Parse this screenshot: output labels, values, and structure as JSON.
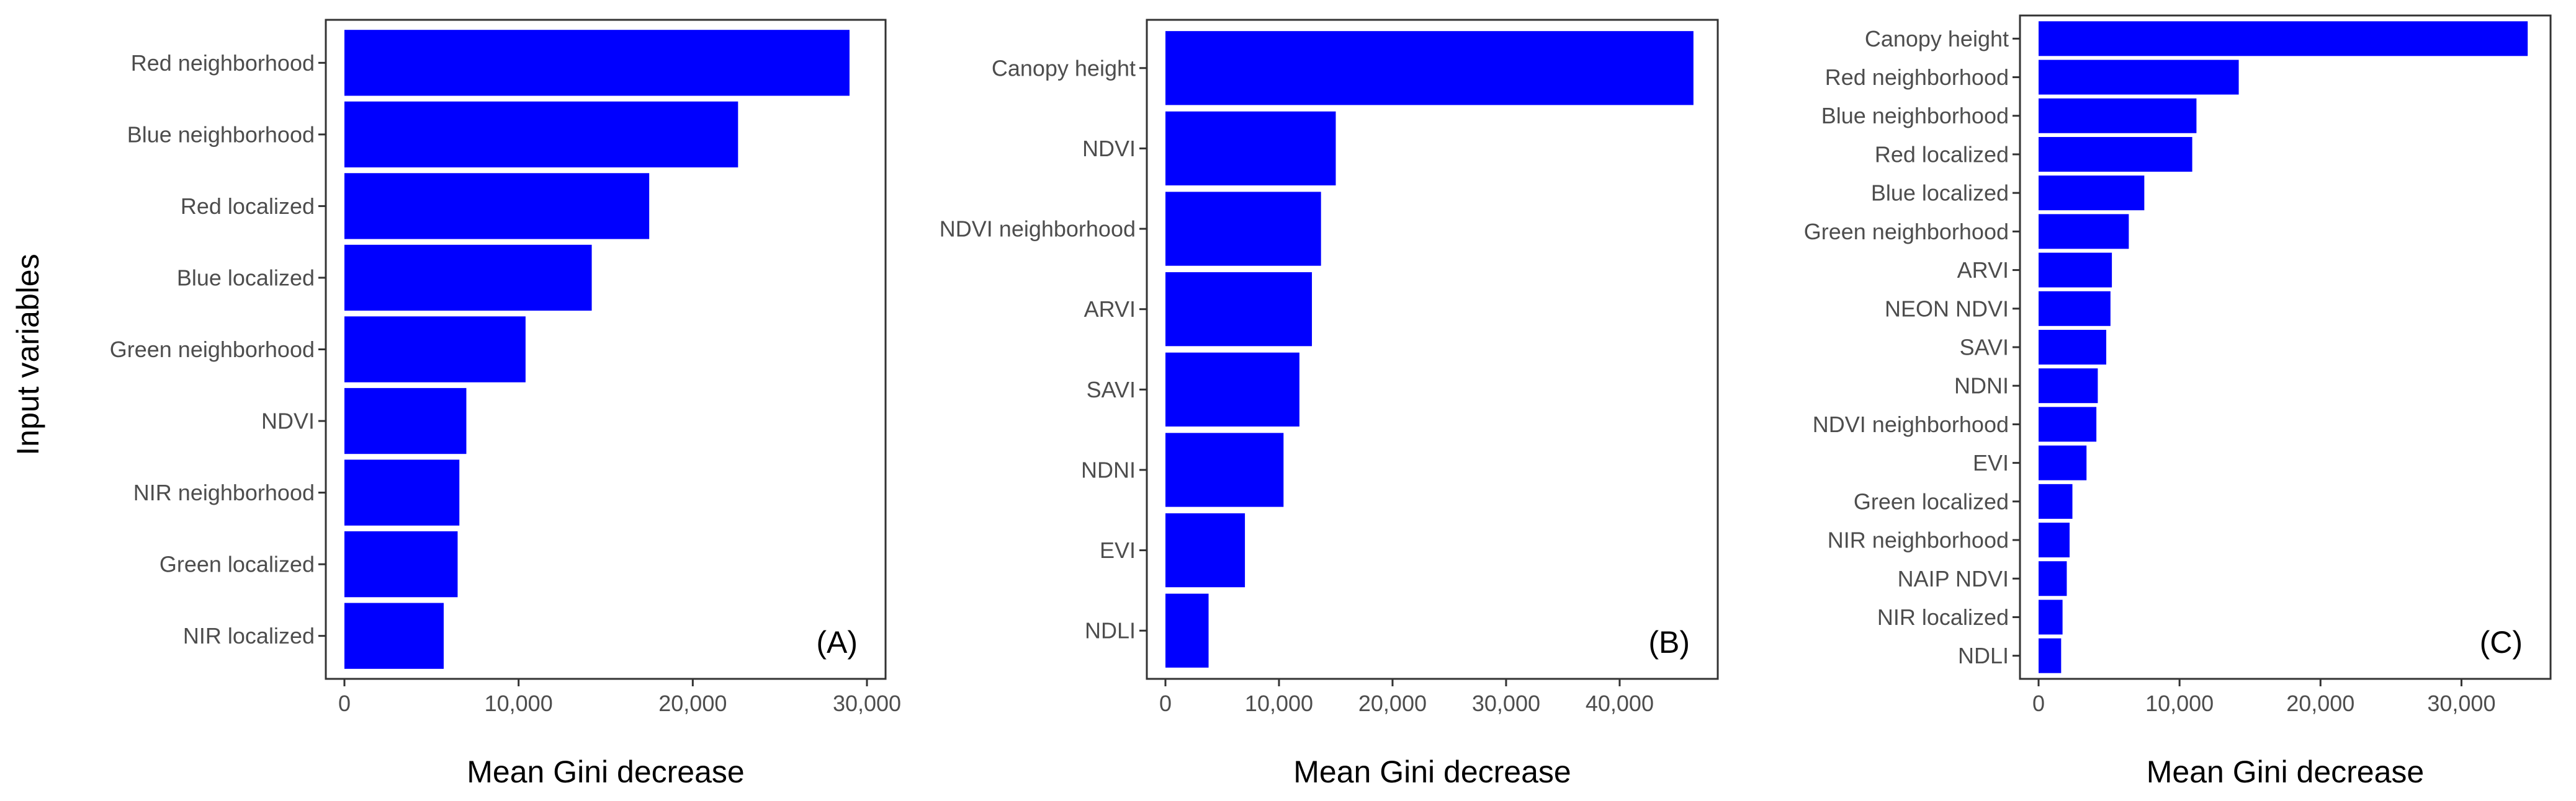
{
  "figure": {
    "y_axis_title": "Input variables",
    "bar_color": "#0000ff"
  },
  "chart_data": [
    {
      "type": "bar",
      "orientation": "horizontal",
      "panel_label": "(A)",
      "xlabel": "Mean Gini decrease",
      "ylabel": "Input variables",
      "xlim": [
        0,
        30000
      ],
      "xticks": [
        0,
        10000,
        20000,
        30000
      ],
      "xtick_labels": [
        "0",
        "10,000",
        "20,000",
        "30,000"
      ],
      "categories": [
        "Red neighborhood",
        "Blue neighborhood",
        "Red localized",
        "Blue localized",
        "Green neighborhood",
        "NDVI",
        "NIR neighborhood",
        "Green localized",
        "NIR localized"
      ],
      "values": [
        29000,
        22600,
        17500,
        14200,
        10400,
        7000,
        6600,
        6500,
        5700
      ]
    },
    {
      "type": "bar",
      "orientation": "horizontal",
      "panel_label": "(B)",
      "xlabel": "Mean Gini decrease",
      "ylabel": "",
      "xlim": [
        0,
        47000
      ],
      "xticks": [
        0,
        10000,
        20000,
        30000,
        40000
      ],
      "xtick_labels": [
        "0",
        "10,000",
        "20,000",
        "30,000",
        "40,000"
      ],
      "categories": [
        "Canopy height",
        "NDVI",
        "NDVI neighborhood",
        "ARVI",
        "SAVI",
        "NDNI",
        "EVI",
        "NDLI"
      ],
      "values": [
        46500,
        15000,
        13700,
        12900,
        11800,
        10400,
        7000,
        3800
      ]
    },
    {
      "type": "bar",
      "orientation": "horizontal",
      "panel_label": "(C)",
      "xlabel": "Mean Gini decrease",
      "ylabel": "",
      "xlim": [
        0,
        35000
      ],
      "xticks": [
        0,
        10000,
        20000,
        30000
      ],
      "xtick_labels": [
        "0",
        "10,000",
        "20,000",
        "30,000"
      ],
      "categories": [
        "Canopy height",
        "Red neighborhood",
        "Blue neighborhood",
        "Red localized",
        "Blue localized",
        "Green neighborhood",
        "ARVI",
        "NEON NDVI",
        "SAVI",
        "NDNI",
        "NDVI neighborhood",
        "EVI",
        "Green localized",
        "NIR neighborhood",
        "NAIP NDVI",
        "NIR localized",
        "NDLI"
      ],
      "values": [
        34700,
        14200,
        11200,
        10900,
        7500,
        6400,
        5200,
        5100,
        4800,
        4200,
        4100,
        3400,
        2400,
        2200,
        2000,
        1700,
        1600
      ]
    }
  ]
}
